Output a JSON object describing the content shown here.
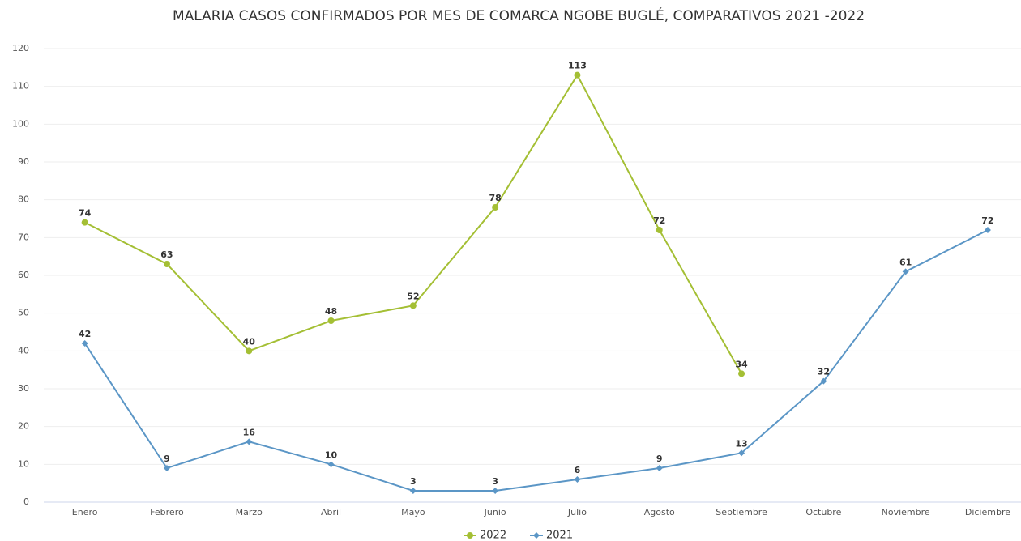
{
  "chart_data": {
    "type": "line",
    "title": "MALARIA CASOS CONFIRMADOS POR MES DE COMARCA NGOBE BUGLÉ, COMPARATIVOS 2021 -2022",
    "categories": [
      "Enero",
      "Febrero",
      "Marzo",
      "Abril",
      "Mayo",
      "Junio",
      "Julio",
      "Agosto",
      "Septiembre",
      "Octubre",
      "Noviembre",
      "Diciembre"
    ],
    "series": [
      {
        "name": "2022",
        "color": "#a4bf34",
        "marker": "circle",
        "values": [
          74,
          63,
          40,
          48,
          52,
          78,
          113,
          72,
          34,
          null,
          null,
          null
        ]
      },
      {
        "name": "2021",
        "color": "#5b96c6",
        "marker": "diamond",
        "values": [
          42,
          9,
          16,
          10,
          3,
          3,
          6,
          9,
          13,
          32,
          61,
          72
        ]
      }
    ],
    "ylim": [
      0,
      120
    ],
    "yticks": [
      0,
      10,
      20,
      30,
      40,
      50,
      60,
      70,
      80,
      90,
      100,
      110,
      120
    ],
    "grid": true,
    "legend": "bottom"
  }
}
